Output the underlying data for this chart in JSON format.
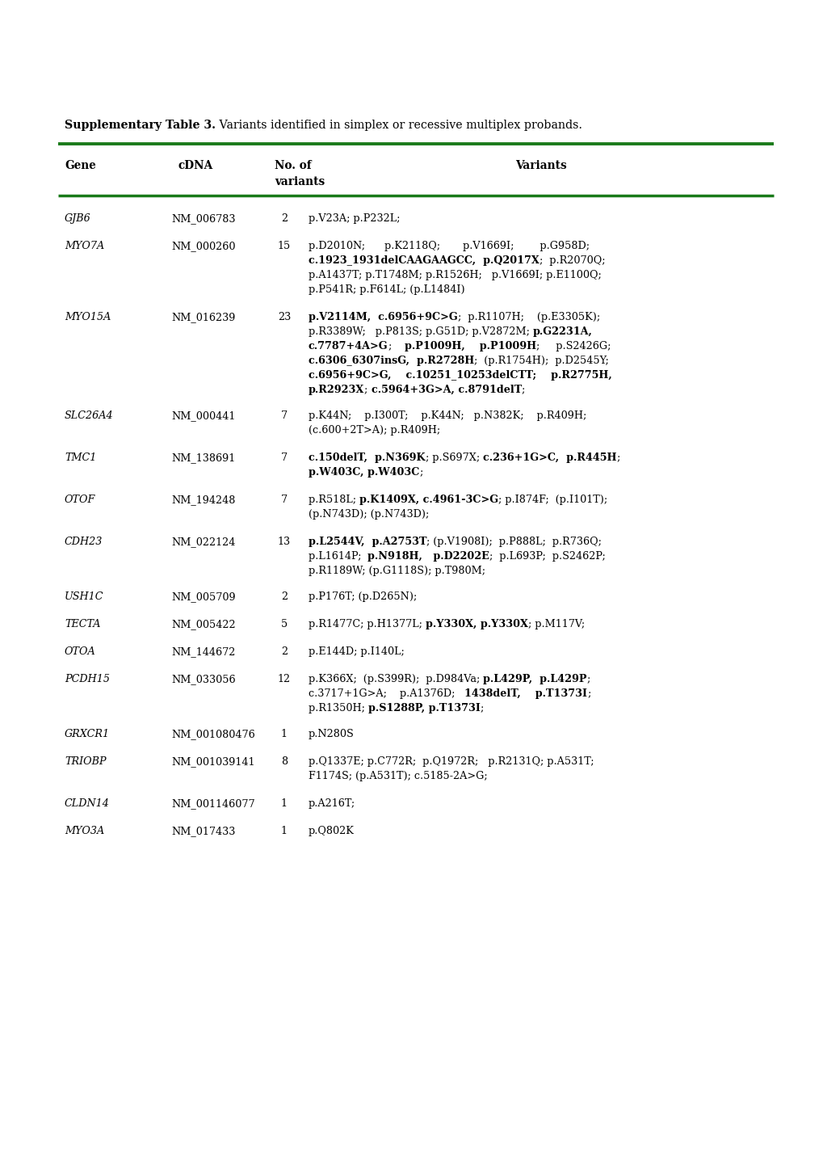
{
  "title_bold": "Supplementary Table 3.",
  "title_normal": " Variants identified in simplex or recessive multiplex probands.",
  "green_color": "#1a7a1a",
  "rows": [
    {
      "gene": "GJB6",
      "cdna": "NM_006783",
      "n": "2",
      "variants_lines": [
        [
          {
            "text": "p.V23A; p.P232L;",
            "bold": false
          }
        ]
      ]
    },
    {
      "gene": "MYO7A",
      "cdna": "NM_000260",
      "n": "15",
      "variants_lines": [
        [
          {
            "text": "p.D2010N;      p.K2118Q;       p.V1669I;        p.G958D;",
            "bold": false
          }
        ],
        [
          {
            "text": "c.1923_1931delCAAGAAGCC,  p.Q2017X",
            "bold": true
          },
          {
            "text": ";  p.R2070Q;",
            "bold": false
          }
        ],
        [
          {
            "text": "p.A1437T; p.T1748M; p.R1526H;   p.V1669I; p.E1100Q;",
            "bold": false
          }
        ],
        [
          {
            "text": "p.P541R; p.F614L; (p.L1484I)",
            "bold": false
          }
        ]
      ]
    },
    {
      "gene": "MYO15A",
      "cdna": "NM_016239",
      "n": "23",
      "variants_lines": [
        [
          {
            "text": "p.V2114M,  c.6956+9C>G",
            "bold": true
          },
          {
            "text": ";  p.R1107H;    (p.E3305K);",
            "bold": false
          }
        ],
        [
          {
            "text": "p.R3389W;   p.P813S; p.G51D; p.V2872M; ",
            "bold": false
          },
          {
            "text": "p.G2231A,",
            "bold": true
          }
        ],
        [
          {
            "text": "c.7787+4A>G",
            "bold": true
          },
          {
            "text": ";    ",
            "bold": false
          },
          {
            "text": "p.P1009H,    p.P1009H",
            "bold": true
          },
          {
            "text": ";     p.S2426G;",
            "bold": false
          }
        ],
        [
          {
            "text": "c.6306_6307insG,  p.R2728H",
            "bold": true
          },
          {
            "text": ";  (p.R1754H);  p.D2545Y;",
            "bold": false
          }
        ],
        [
          {
            "text": "c.6956+9C>G,    c.10251_10253delCTT;    p.R2775H,",
            "bold": true
          }
        ],
        [
          {
            "text": "p.R2923X",
            "bold": true
          },
          {
            "text": "; ",
            "bold": false
          },
          {
            "text": "c.5964+3G>A, c.8791delT",
            "bold": true
          },
          {
            "text": ";",
            "bold": false
          }
        ]
      ]
    },
    {
      "gene": "SLC26A4",
      "cdna": "NM_000441",
      "n": "7",
      "variants_lines": [
        [
          {
            "text": "p.K44N;    p.I300T;    p.K44N;   p.N382K;    p.R409H;",
            "bold": false
          }
        ],
        [
          {
            "text": "(c.600+2T>A); p.R409H;",
            "bold": false
          }
        ]
      ]
    },
    {
      "gene": "TMC1",
      "cdna": "NM_138691",
      "n": "7",
      "variants_lines": [
        [
          {
            "text": "c.150delT,  p.N369K",
            "bold": true
          },
          {
            "text": "; p.S697X; ",
            "bold": false
          },
          {
            "text": "c.236+1G>C,  p.R445H",
            "bold": true
          },
          {
            "text": ";",
            "bold": false
          }
        ],
        [
          {
            "text": "p.W403C, p.W403C",
            "bold": true
          },
          {
            "text": ";",
            "bold": false
          }
        ]
      ]
    },
    {
      "gene": "OTOF",
      "cdna": "NM_194248",
      "n": "7",
      "variants_lines": [
        [
          {
            "text": "p.R518L; ",
            "bold": false
          },
          {
            "text": "p.K1409X, c.4961-3C>G",
            "bold": true
          },
          {
            "text": "; p.I874F;  (p.I101T);",
            "bold": false
          }
        ],
        [
          {
            "text": "(p.N743D); (p.N743D);",
            "bold": false
          }
        ]
      ]
    },
    {
      "gene": "CDH23",
      "cdna": "NM_022124",
      "n": "13",
      "variants_lines": [
        [
          {
            "text": "p.L2544V,  p.A2753T",
            "bold": true
          },
          {
            "text": "; (p.V1908I);  p.P888L;  p.R736Q;",
            "bold": false
          }
        ],
        [
          {
            "text": "p.L1614P;  ",
            "bold": false
          },
          {
            "text": "p.N918H,   p.D2202E",
            "bold": true
          },
          {
            "text": ";  p.L693P;  p.S2462P;",
            "bold": false
          }
        ],
        [
          {
            "text": "p.R1189W; (p.G1118S); p.T980M;",
            "bold": false
          }
        ]
      ]
    },
    {
      "gene": "USH1C",
      "cdna": "NM_005709",
      "n": "2",
      "variants_lines": [
        [
          {
            "text": "p.P176T; (p.D265N);",
            "bold": false
          }
        ]
      ]
    },
    {
      "gene": "TECTA",
      "cdna": "NM_005422",
      "n": "5",
      "variants_lines": [
        [
          {
            "text": "p.R1477C; p.H1377L; ",
            "bold": false
          },
          {
            "text": "p.Y330X, p.Y330X",
            "bold": true
          },
          {
            "text": "; p.M117V;",
            "bold": false
          }
        ]
      ]
    },
    {
      "gene": "OTOA",
      "cdna": "NM_144672",
      "n": "2",
      "variants_lines": [
        [
          {
            "text": "p.E144D; p.I140L;",
            "bold": false
          }
        ]
      ]
    },
    {
      "gene": "PCDH15",
      "cdna": "NM_033056",
      "n": "12",
      "variants_lines": [
        [
          {
            "text": "p.K366X;  (p.S399R);  p.D984Va; ",
            "bold": false
          },
          {
            "text": "p.L429P,  p.L429P",
            "bold": true
          },
          {
            "text": ";",
            "bold": false
          }
        ],
        [
          {
            "text": "c.3717+1G>A;    p.A1376D;   ",
            "bold": false
          },
          {
            "text": "1438delT,    p.T1373I",
            "bold": true
          },
          {
            "text": ";",
            "bold": false
          }
        ],
        [
          {
            "text": "p.R1350H; ",
            "bold": false
          },
          {
            "text": "p.S1288P, p.T1373I",
            "bold": true
          },
          {
            "text": ";",
            "bold": false
          }
        ]
      ]
    },
    {
      "gene": "GRXCR1",
      "cdna": "NM_001080476",
      "n": "1",
      "variants_lines": [
        [
          {
            "text": "p.N280S",
            "bold": false
          }
        ]
      ]
    },
    {
      "gene": "TRIOBP",
      "cdna": "NM_001039141",
      "n": "8",
      "variants_lines": [
        [
          {
            "text": "p.Q1337E; p.C772R;  p.Q1972R;   p.R2131Q; p.A531T;",
            "bold": false
          }
        ],
        [
          {
            "text": "F1174S; (p.A531T); c.5185-2A>G;",
            "bold": false
          }
        ]
      ]
    },
    {
      "gene": "CLDN14",
      "cdna": "NM_001146077",
      "n": "1",
      "variants_lines": [
        [
          {
            "text": "p.A216T;",
            "bold": false
          }
        ]
      ]
    },
    {
      "gene": "MYO3A",
      "cdna": "NM_017433",
      "n": "1",
      "variants_lines": [
        [
          {
            "text": "p.Q802K",
            "bold": false
          }
        ]
      ]
    }
  ]
}
